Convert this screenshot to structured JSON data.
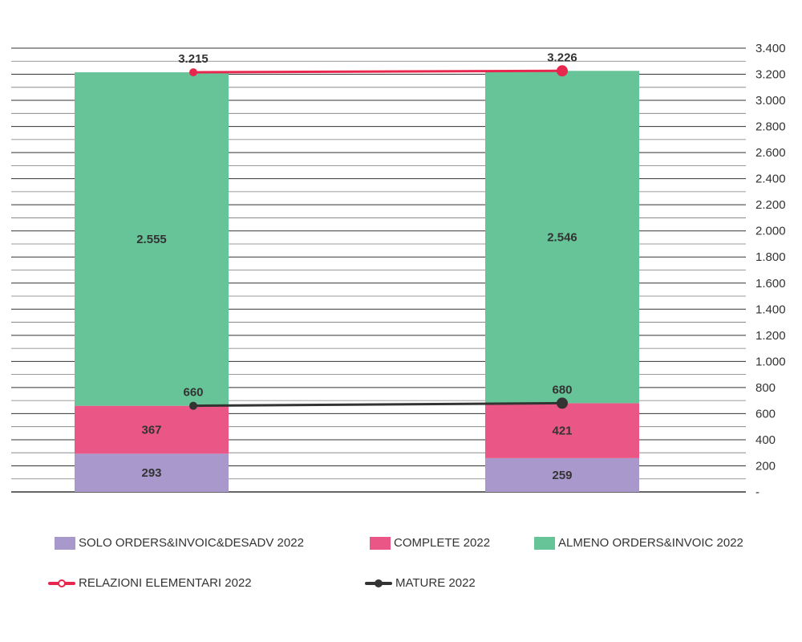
{
  "chart_data": {
    "type": "bar",
    "stacked": true,
    "categories": [
      "",
      ""
    ],
    "series": [
      {
        "name": "SOLO ORDERS&INVOIC&DESADV 2022",
        "kind": "bar",
        "color": "#a998cc",
        "values": [
          293,
          259
        ],
        "labels": [
          "293",
          "259"
        ]
      },
      {
        "name": "COMPLETE 2022",
        "kind": "bar",
        "color": "#ea5787",
        "values": [
          367,
          421
        ],
        "labels": [
          "367",
          "421"
        ]
      },
      {
        "name": "ALMENO ORDERS&INVOIC 2022",
        "kind": "bar",
        "color": "#67c499",
        "values": [
          2555,
          2546
        ],
        "labels": [
          "2.555",
          "2.546"
        ]
      },
      {
        "name": "RELAZIONI ELEMENTARI 2022",
        "kind": "line",
        "color": "#e8274e",
        "values": [
          3215,
          3226
        ],
        "labels": [
          "3.215",
          "3.226"
        ]
      },
      {
        "name": "MATURE 2022",
        "kind": "line",
        "color": "#333333",
        "values": [
          660,
          680
        ],
        "labels": [
          "660",
          "680"
        ]
      }
    ],
    "ylim": [
      0,
      3400
    ],
    "y_ticks": [
      0,
      200,
      400,
      600,
      800,
      1000,
      1200,
      1400,
      1600,
      1800,
      2000,
      2200,
      2400,
      2600,
      2800,
      3000,
      3200,
      3400
    ],
    "y_tick_labels": [
      "-",
      "200",
      "400",
      "600",
      "800",
      "1.000",
      "1.200",
      "1.400",
      "1.600",
      "1.800",
      "2.000",
      "2.200",
      "2.400",
      "2.600",
      "2.800",
      "3.000",
      "3.200",
      "3.400"
    ],
    "y_axis_side": "right",
    "grid": true,
    "legend_position": "bottom",
    "title": "",
    "xlabel": "",
    "ylabel": ""
  }
}
